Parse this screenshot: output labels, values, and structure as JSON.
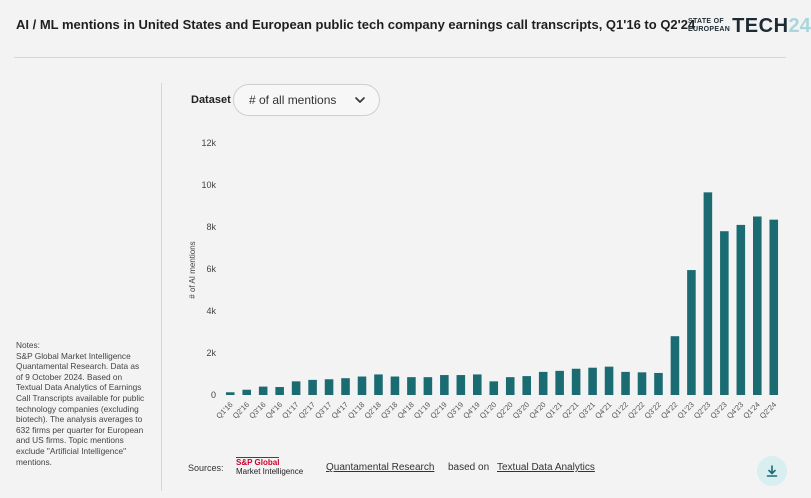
{
  "header": {
    "title": "AI / ML mentions in United States and European public tech company earnings call transcripts, Q1'16 to Q2'24",
    "brand_line1": "STATE OF",
    "brand_line2": "EUROPEAN",
    "brand_main": "TECH",
    "brand_year": "24"
  },
  "controls": {
    "dataset_label": "Dataset",
    "dataset_value": "# of all mentions"
  },
  "notes": {
    "text": "Notes:\nS&P Global Market Intelligence Quantamental Research. Data as of 9 October 2024. Based on Textual Data Analytics of Earnings Call Transcripts available for public technology companies (excluding biotech). The analysis averages to 632 firms per quarter for European and US firms. Topic mentions exclude \"Artificial Intelligence\" mentions."
  },
  "sources": {
    "label": "Sources:",
    "logo_line1": "S&P Global",
    "logo_line2": "Market Intelligence",
    "link1": "Quantamental Research",
    "middle": "based on",
    "link2": "Textual Data Analytics"
  },
  "colors": {
    "bar": "#1b6b73",
    "accent_light": "#a9d6db"
  },
  "icons": {
    "dropdown": "chevron-down-icon",
    "download": "download-icon"
  },
  "chart_data": {
    "type": "bar",
    "ylabel": "# of AI mentions",
    "xlabel": "",
    "ylim": [
      0,
      12000
    ],
    "yticks": [
      0,
      2000,
      4000,
      6000,
      8000,
      10000,
      12000
    ],
    "ytick_labels": [
      "0",
      "2k",
      "4k",
      "6k",
      "8k",
      "10k",
      "12k"
    ],
    "grid": false,
    "categories": [
      "Q1'16",
      "Q2'16",
      "Q3'16",
      "Q4'16",
      "Q1'17",
      "Q2'17",
      "Q3'17",
      "Q4'17",
      "Q1'18",
      "Q2'18",
      "Q3'18",
      "Q4'18",
      "Q1'19",
      "Q2'19",
      "Q3'19",
      "Q4'19",
      "Q1'20",
      "Q2'20",
      "Q3'20",
      "Q4'20",
      "Q1'21",
      "Q2'21",
      "Q3'21",
      "Q4'21",
      "Q1'22",
      "Q2'22",
      "Q3'22",
      "Q4'22",
      "Q1'23",
      "Q2'23",
      "Q3'23",
      "Q4'23",
      "Q1'24",
      "Q2'24"
    ],
    "values": [
      130,
      250,
      400,
      380,
      650,
      720,
      750,
      800,
      880,
      980,
      880,
      850,
      850,
      950,
      950,
      980,
      650,
      850,
      900,
      1100,
      1150,
      1250,
      1300,
      1350,
      1100,
      1080,
      1050,
      2800,
      5950,
      9650,
      7800,
      8100,
      8500,
      8350
    ]
  }
}
